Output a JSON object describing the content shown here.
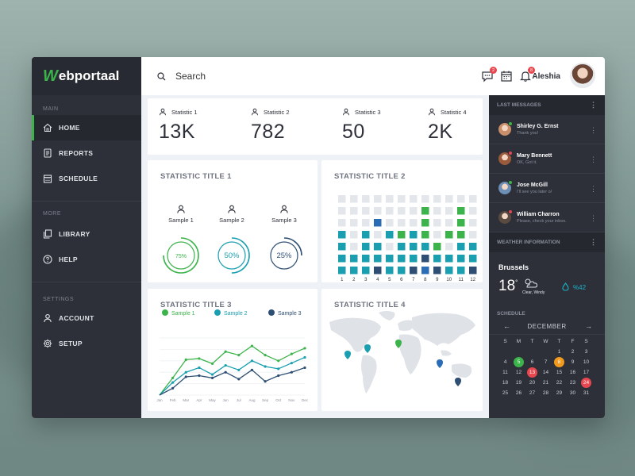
{
  "brand": {
    "logo_first": "W",
    "logo_rest": "ebportaal",
    "green": "#3cb44b",
    "blue": "#1a9fb0",
    "navy": "#2e4f73"
  },
  "sidebar": {
    "sections": [
      {
        "label": "MAIN",
        "items": [
          {
            "label": "HOME",
            "icon": "home-icon",
            "active": true
          },
          {
            "label": "REPORTS",
            "icon": "document-icon"
          },
          {
            "label": "SCHEDULE",
            "icon": "calendar-icon"
          }
        ]
      },
      {
        "label": "MORE",
        "items": [
          {
            "label": "LIBRARY",
            "icon": "library-icon"
          },
          {
            "label": "HELP",
            "icon": "help-icon"
          }
        ]
      },
      {
        "label": "SETTINGS",
        "items": [
          {
            "label": "ACCOUNT",
            "icon": "user-icon"
          },
          {
            "label": "SETUP",
            "icon": "gear-icon"
          }
        ]
      }
    ]
  },
  "header": {
    "search_placeholder": "Search",
    "messages_badge": "2",
    "notifications_badge": "8",
    "user_name": "Aleshia"
  },
  "stats": [
    {
      "label": "Statistic 1",
      "value": "13K"
    },
    {
      "label": "Statistic 2",
      "value": "782"
    },
    {
      "label": "Statistic 3",
      "value": "50"
    },
    {
      "label": "Statistic 4",
      "value": "2K"
    }
  ],
  "card1": {
    "title": "STATISTIC TITLE 1",
    "samples": [
      {
        "label": "Sample 1",
        "percent": 75,
        "text": "75%",
        "color": "#3cb44b"
      },
      {
        "label": "Sample 2",
        "percent": 50,
        "text": "50%",
        "color": "#1a9fb0"
      },
      {
        "label": "Sample 3",
        "percent": 25,
        "text": "25%",
        "color": "#2e4f73"
      }
    ]
  },
  "card2": {
    "title": "STATISTIC TITLE 2",
    "columns": [
      "1",
      "2",
      "3",
      "4",
      "5",
      "6",
      "7",
      "8",
      "9",
      "10",
      "11",
      "12"
    ]
  },
  "card3": {
    "title": "STATISTIC TITLE 3",
    "legend": [
      {
        "label": "Sample 1",
        "color": "#3cb44b"
      },
      {
        "label": "Sample 2",
        "color": "#1a9fb0"
      },
      {
        "label": "Sample 3",
        "color": "#2e4f73"
      }
    ],
    "months": [
      "Jan",
      "Feb",
      "Mar",
      "Apr",
      "May",
      "Jun",
      "Jul",
      "Aug",
      "Sep",
      "Oct",
      "Nov",
      "Dec"
    ]
  },
  "card4": {
    "title": "STATISTIC TITLE 4"
  },
  "chart_data": {
    "type": "line",
    "x": [
      "Jan",
      "Feb",
      "Mar",
      "Apr",
      "May",
      "Jun",
      "Jul",
      "Aug",
      "Sep",
      "Oct",
      "Nov",
      "Dec"
    ],
    "series": [
      {
        "name": "Sample 1",
        "values": [
          0,
          30,
          62,
          64,
          55,
          76,
          70,
          86,
          70,
          60,
          72,
          82
        ]
      },
      {
        "name": "Sample 2",
        "values": [
          0,
          22,
          40,
          48,
          36,
          52,
          44,
          60,
          50,
          46,
          56,
          66
        ]
      },
      {
        "name": "Sample 3",
        "values": [
          0,
          12,
          32,
          34,
          30,
          40,
          28,
          44,
          24,
          34,
          40,
          48
        ]
      }
    ],
    "ylim": [
      0,
      100
    ],
    "grid": true
  },
  "messages": {
    "title": "LAST MESSAGES",
    "items": [
      {
        "name": "Shirley G. Ernst",
        "text": "Thank you!",
        "status": "#3cb44b",
        "avatar": "#c98f6a"
      },
      {
        "name": "Mary Bennett",
        "text": "OK, Got it.",
        "status": "#e8474f",
        "avatar": "#9a5a3c"
      },
      {
        "name": "Jose McGill",
        "text": "I'll see you later o/",
        "status": "#3cb44b",
        "avatar": "#6d8fb5"
      },
      {
        "name": "William Charron",
        "text": "Please, check your inbox.",
        "status": "#e8474f",
        "avatar": "#5a4a3f"
      }
    ]
  },
  "weather": {
    "title": "WEATHER INFORMATION",
    "city": "Brussels",
    "temp": "18",
    "unit": "°",
    "condition": "Clear, Windy",
    "humidity": "%42"
  },
  "schedule": {
    "title": "SCHEDULE",
    "month": "DECEMBER",
    "weekdays": [
      "S",
      "M",
      "T",
      "W",
      "T",
      "F",
      "S"
    ],
    "weeks": [
      [
        "",
        "",
        "",
        "",
        "1",
        "2",
        "3"
      ],
      [
        "4",
        "5",
        "6",
        "7",
        "8",
        "9",
        "10"
      ],
      [
        "11",
        "12",
        "13",
        "14",
        "15",
        "16",
        "17"
      ],
      [
        "18",
        "19",
        "20",
        "21",
        "22",
        "23",
        "24"
      ],
      [
        "25",
        "26",
        "27",
        "28",
        "29",
        "30",
        "31"
      ]
    ]
  }
}
